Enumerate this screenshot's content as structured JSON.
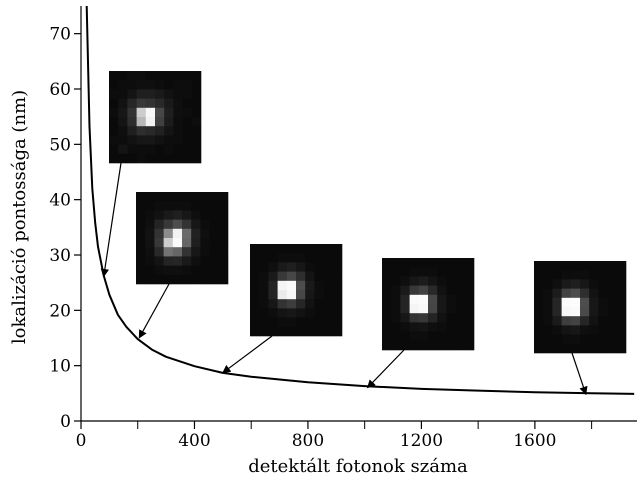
{
  "chart_data": {
    "type": "line",
    "title": "",
    "xlabel": "detektált fotonok száma",
    "ylabel": "lokalizáció pontossága (nm)",
    "xlim": [
      0,
      1960
    ],
    "ylim": [
      0,
      75
    ],
    "x_ticks": [
      0,
      400,
      800,
      1200,
      1600
    ],
    "x_minor_ticks": [
      200,
      600,
      1000,
      1400,
      1800
    ],
    "y_ticks": [
      0,
      10,
      20,
      30,
      40,
      50,
      60,
      70
    ],
    "x_tick_labels": [
      "0",
      "400",
      "800",
      "1200",
      "1600"
    ],
    "y_tick_labels": [
      "0",
      "10",
      "20",
      "30",
      "40",
      "50",
      "60",
      "70"
    ],
    "grid": false,
    "series": [
      {
        "x": [
          20,
          30,
          40,
          50,
          60,
          80,
          100,
          130,
          160,
          200,
          250,
          300,
          400,
          500,
          600,
          800,
          1000,
          1200,
          1400,
          1600,
          1800,
          1950
        ],
        "y": [
          75,
          53.2,
          42.0,
          35.8,
          31.5,
          26.3,
          22.8,
          19.2,
          17.0,
          14.8,
          12.9,
          11.6,
          9.9,
          8.7,
          8.0,
          7.0,
          6.3,
          5.8,
          5.5,
          5.2,
          5.0,
          4.9
        ]
      }
    ],
    "annotations": [
      {
        "kind": "psf-image",
        "at_x": 80,
        "at_y": 26.3,
        "pixels": [
          [
            0.04,
            0.04,
            0.05,
            0.05,
            0.04,
            0.04,
            0.04,
            0.04,
            0.04,
            0.04
          ],
          [
            0.04,
            0.05,
            0.05,
            0.06,
            0.06,
            0.05,
            0.04,
            0.05,
            0.05,
            0.04
          ],
          [
            0.05,
            0.05,
            0.08,
            0.12,
            0.12,
            0.1,
            0.07,
            0.05,
            0.05,
            0.04
          ],
          [
            0.04,
            0.07,
            0.15,
            0.22,
            0.2,
            0.16,
            0.1,
            0.06,
            0.04,
            0.04
          ],
          [
            0.05,
            0.09,
            0.2,
            0.8,
            0.97,
            0.28,
            0.12,
            0.06,
            0.05,
            0.04
          ],
          [
            0.04,
            0.08,
            0.18,
            0.72,
            0.95,
            0.25,
            0.11,
            0.05,
            0.04,
            0.05
          ],
          [
            0.04,
            0.06,
            0.12,
            0.18,
            0.16,
            0.13,
            0.08,
            0.05,
            0.04,
            0.04
          ],
          [
            0.05,
            0.05,
            0.07,
            0.09,
            0.09,
            0.07,
            0.05,
            0.05,
            0.04,
            0.04
          ],
          [
            0.04,
            0.08,
            0.05,
            0.05,
            0.05,
            0.04,
            0.05,
            0.04,
            0.04,
            0.04
          ],
          [
            0.04,
            0.04,
            0.04,
            0.05,
            0.04,
            0.04,
            0.04,
            0.04,
            0.04,
            0.04
          ]
        ]
      },
      {
        "kind": "psf-image",
        "at_x": 205,
        "at_y": 15.2,
        "pixels": [
          [
            0.04,
            0.04,
            0.04,
            0.04,
            0.04,
            0.04,
            0.04,
            0.04,
            0.04,
            0.04
          ],
          [
            0.04,
            0.04,
            0.05,
            0.05,
            0.05,
            0.05,
            0.04,
            0.04,
            0.04,
            0.04
          ],
          [
            0.04,
            0.05,
            0.07,
            0.1,
            0.12,
            0.09,
            0.06,
            0.04,
            0.04,
            0.04
          ],
          [
            0.04,
            0.06,
            0.14,
            0.22,
            0.3,
            0.2,
            0.09,
            0.05,
            0.04,
            0.04
          ],
          [
            0.04,
            0.07,
            0.2,
            0.55,
            0.95,
            0.42,
            0.13,
            0.06,
            0.04,
            0.04
          ],
          [
            0.04,
            0.07,
            0.22,
            0.8,
            0.98,
            0.4,
            0.12,
            0.05,
            0.04,
            0.04
          ],
          [
            0.04,
            0.06,
            0.16,
            0.45,
            0.4,
            0.2,
            0.09,
            0.05,
            0.04,
            0.04
          ],
          [
            0.04,
            0.05,
            0.08,
            0.14,
            0.15,
            0.1,
            0.06,
            0.04,
            0.04,
            0.04
          ],
          [
            0.04,
            0.04,
            0.05,
            0.06,
            0.06,
            0.05,
            0.04,
            0.04,
            0.04,
            0.04
          ],
          [
            0.04,
            0.04,
            0.04,
            0.04,
            0.04,
            0.04,
            0.04,
            0.04,
            0.04,
            0.04
          ]
        ]
      },
      {
        "kind": "psf-image",
        "at_x": 500,
        "at_y": 8.9,
        "pixels": [
          [
            0.04,
            0.04,
            0.04,
            0.04,
            0.04,
            0.04,
            0.04,
            0.04,
            0.04,
            0.04
          ],
          [
            0.04,
            0.04,
            0.04,
            0.05,
            0.05,
            0.05,
            0.04,
            0.04,
            0.04,
            0.04
          ],
          [
            0.04,
            0.04,
            0.06,
            0.1,
            0.12,
            0.09,
            0.05,
            0.04,
            0.04,
            0.04
          ],
          [
            0.04,
            0.05,
            0.1,
            0.22,
            0.28,
            0.18,
            0.08,
            0.04,
            0.04,
            0.04
          ],
          [
            0.04,
            0.05,
            0.14,
            0.96,
            0.98,
            0.3,
            0.1,
            0.05,
            0.04,
            0.04
          ],
          [
            0.04,
            0.05,
            0.14,
            0.92,
            0.97,
            0.28,
            0.09,
            0.05,
            0.04,
            0.04
          ],
          [
            0.04,
            0.05,
            0.09,
            0.2,
            0.24,
            0.15,
            0.07,
            0.04,
            0.04,
            0.04
          ],
          [
            0.04,
            0.04,
            0.05,
            0.08,
            0.09,
            0.07,
            0.05,
            0.04,
            0.04,
            0.04
          ],
          [
            0.04,
            0.04,
            0.04,
            0.05,
            0.05,
            0.04,
            0.04,
            0.04,
            0.04,
            0.04
          ],
          [
            0.04,
            0.04,
            0.04,
            0.04,
            0.04,
            0.04,
            0.04,
            0.04,
            0.04,
            0.04
          ]
        ]
      },
      {
        "kind": "psf-image",
        "at_x": 1010,
        "at_y": 6.2,
        "pixels": [
          [
            0.04,
            0.04,
            0.04,
            0.04,
            0.04,
            0.04,
            0.04,
            0.04,
            0.04,
            0.04
          ],
          [
            0.04,
            0.04,
            0.04,
            0.05,
            0.05,
            0.05,
            0.04,
            0.04,
            0.04,
            0.04
          ],
          [
            0.04,
            0.04,
            0.06,
            0.09,
            0.11,
            0.08,
            0.05,
            0.04,
            0.04,
            0.04
          ],
          [
            0.04,
            0.05,
            0.1,
            0.22,
            0.26,
            0.16,
            0.07,
            0.04,
            0.04,
            0.04
          ],
          [
            0.04,
            0.05,
            0.14,
            0.98,
            0.99,
            0.28,
            0.09,
            0.05,
            0.04,
            0.04
          ],
          [
            0.04,
            0.05,
            0.14,
            0.96,
            0.98,
            0.27,
            0.09,
            0.05,
            0.04,
            0.04
          ],
          [
            0.04,
            0.05,
            0.09,
            0.2,
            0.22,
            0.14,
            0.07,
            0.04,
            0.04,
            0.04
          ],
          [
            0.04,
            0.04,
            0.05,
            0.07,
            0.08,
            0.06,
            0.05,
            0.04,
            0.04,
            0.04
          ],
          [
            0.04,
            0.04,
            0.04,
            0.05,
            0.05,
            0.04,
            0.04,
            0.04,
            0.04,
            0.04
          ],
          [
            0.04,
            0.04,
            0.04,
            0.04,
            0.04,
            0.04,
            0.04,
            0.04,
            0.04,
            0.04
          ]
        ]
      },
      {
        "kind": "psf-image",
        "at_x": 1780,
        "at_y": 5.0,
        "pixels": [
          [
            0.04,
            0.04,
            0.04,
            0.04,
            0.04,
            0.04,
            0.04,
            0.04,
            0.04,
            0.04
          ],
          [
            0.04,
            0.04,
            0.04,
            0.05,
            0.05,
            0.05,
            0.04,
            0.04,
            0.04,
            0.04
          ],
          [
            0.04,
            0.04,
            0.06,
            0.1,
            0.12,
            0.09,
            0.05,
            0.04,
            0.04,
            0.04
          ],
          [
            0.04,
            0.05,
            0.11,
            0.26,
            0.3,
            0.18,
            0.07,
            0.04,
            0.04,
            0.04
          ],
          [
            0.04,
            0.05,
            0.15,
            0.98,
            0.99,
            0.3,
            0.09,
            0.05,
            0.04,
            0.04
          ],
          [
            0.04,
            0.05,
            0.15,
            0.97,
            0.98,
            0.29,
            0.09,
            0.05,
            0.04,
            0.04
          ],
          [
            0.04,
            0.05,
            0.1,
            0.24,
            0.26,
            0.15,
            0.07,
            0.04,
            0.04,
            0.04
          ],
          [
            0.04,
            0.04,
            0.05,
            0.08,
            0.09,
            0.06,
            0.05,
            0.04,
            0.04,
            0.04
          ],
          [
            0.04,
            0.04,
            0.04,
            0.05,
            0.05,
            0.04,
            0.04,
            0.04,
            0.04,
            0.04
          ],
          [
            0.04,
            0.04,
            0.04,
            0.04,
            0.04,
            0.04,
            0.04,
            0.04,
            0.04,
            0.04
          ]
        ]
      }
    ]
  }
}
